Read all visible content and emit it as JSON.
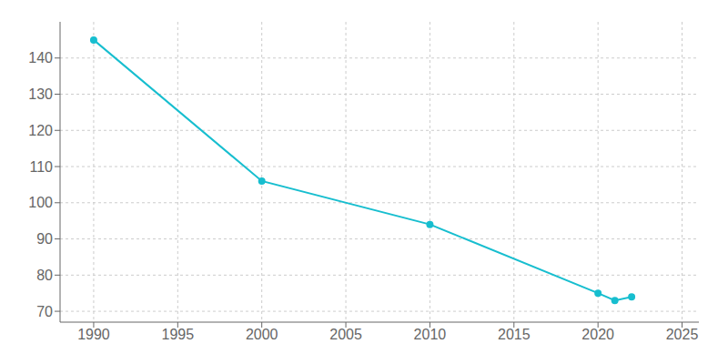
{
  "chart_data": {
    "type": "line",
    "x": [
      1990,
      2000,
      2010,
      2020,
      2021,
      2022
    ],
    "values": [
      145,
      106,
      94,
      75,
      73,
      74
    ],
    "color": "#17BECF",
    "marker": "circle",
    "xlim": [
      1988,
      2026
    ],
    "ylim": [
      67,
      150
    ],
    "xticks": [
      1990,
      1995,
      2000,
      2005,
      2010,
      2015,
      2020,
      2025
    ],
    "yticks": [
      70,
      80,
      90,
      100,
      110,
      120,
      130,
      140
    ],
    "grid": true
  }
}
